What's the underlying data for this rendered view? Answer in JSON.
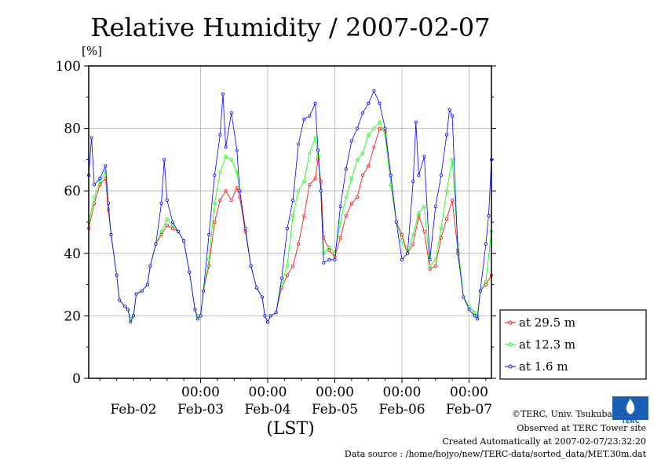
{
  "chart_data": {
    "type": "line",
    "title": "Relative Humidity / 2007-02-07",
    "ylabel": "[%]",
    "xlabel": "(LST)",
    "ylim": [
      0,
      100
    ],
    "xlim": [
      0,
      144
    ],
    "yticks": [
      0,
      20,
      40,
      60,
      80,
      100
    ],
    "xticks_time": [
      {
        "x": 40,
        "label": "00:00"
      },
      {
        "x": 64,
        "label": "00:00"
      },
      {
        "x": 88,
        "label": "00:00"
      },
      {
        "x": 112,
        "label": "00:00"
      },
      {
        "x": 136,
        "label": "00:00"
      }
    ],
    "xticks_date": [
      {
        "x": 16,
        "label": "Feb-02"
      },
      {
        "x": 40,
        "label": "Feb-03"
      },
      {
        "x": 64,
        "label": "Feb-04"
      },
      {
        "x": 88,
        "label": "Feb-05"
      },
      {
        "x": 112,
        "label": "Feb-06"
      },
      {
        "x": 136,
        "label": "Feb-07"
      }
    ],
    "grid": true,
    "legend_position": "right-bottom",
    "series": [
      {
        "name": "at 29.5 m",
        "color": "#ff0000",
        "points": [
          [
            0,
            48
          ],
          [
            2,
            56
          ],
          [
            4,
            62
          ],
          [
            6,
            64
          ],
          [
            7,
            54
          ],
          [
            8,
            46
          ],
          [
            10,
            33
          ],
          [
            11,
            25
          ],
          [
            13,
            23
          ],
          [
            14,
            22
          ],
          [
            15,
            19
          ],
          [
            16,
            20
          ],
          [
            17,
            27
          ],
          [
            19,
            28
          ],
          [
            21,
            30
          ],
          [
            22,
            36
          ],
          [
            24,
            43
          ],
          [
            26,
            46
          ],
          [
            28,
            49
          ],
          [
            30,
            48
          ],
          [
            32,
            47
          ],
          [
            34,
            44
          ],
          [
            36,
            34
          ],
          [
            38,
            22
          ],
          [
            39,
            20
          ],
          [
            40,
            20
          ],
          [
            41,
            28
          ],
          [
            43,
            36
          ],
          [
            45,
            50
          ],
          [
            47,
            57
          ],
          [
            49,
            60
          ],
          [
            51,
            57
          ],
          [
            53,
            61
          ],
          [
            54,
            58
          ],
          [
            56,
            47
          ],
          [
            58,
            36
          ],
          [
            60,
            29
          ],
          [
            62,
            26
          ],
          [
            63,
            20
          ],
          [
            64,
            18
          ],
          [
            65,
            20
          ],
          [
            67,
            21
          ],
          [
            69,
            29
          ],
          [
            71,
            33
          ],
          [
            73,
            36
          ],
          [
            75,
            43
          ],
          [
            77,
            52
          ],
          [
            79,
            62
          ],
          [
            81,
            64
          ],
          [
            82,
            70
          ],
          [
            83,
            63
          ],
          [
            84,
            45
          ],
          [
            86,
            41
          ],
          [
            88,
            39
          ],
          [
            90,
            45
          ],
          [
            92,
            52
          ],
          [
            94,
            56
          ],
          [
            96,
            58
          ],
          [
            98,
            65
          ],
          [
            100,
            68
          ],
          [
            102,
            74
          ],
          [
            104,
            80
          ],
          [
            106,
            79
          ],
          [
            108,
            65
          ],
          [
            110,
            50
          ],
          [
            112,
            46
          ],
          [
            114,
            40
          ],
          [
            116,
            43
          ],
          [
            118,
            52
          ],
          [
            120,
            47
          ],
          [
            122,
            35
          ],
          [
            124,
            36
          ],
          [
            126,
            45
          ],
          [
            128,
            51
          ],
          [
            130,
            57
          ],
          [
            132,
            41
          ],
          [
            134,
            26
          ],
          [
            136,
            23
          ],
          [
            138,
            21
          ],
          [
            139,
            20
          ],
          [
            140,
            28
          ],
          [
            142,
            30
          ],
          [
            144,
            33
          ]
        ]
      },
      {
        "name": "at 12.3 m",
        "color": "#00ff00",
        "points": [
          [
            0,
            50
          ],
          [
            2,
            58
          ],
          [
            4,
            63
          ],
          [
            6,
            66
          ],
          [
            7,
            56
          ],
          [
            8,
            46
          ],
          [
            10,
            33
          ],
          [
            11,
            25
          ],
          [
            13,
            23
          ],
          [
            14,
            22
          ],
          [
            15,
            19
          ],
          [
            16,
            20
          ],
          [
            17,
            27
          ],
          [
            19,
            28
          ],
          [
            21,
            30
          ],
          [
            22,
            36
          ],
          [
            24,
            43
          ],
          [
            26,
            47
          ],
          [
            28,
            51
          ],
          [
            30,
            49
          ],
          [
            32,
            47
          ],
          [
            34,
            44
          ],
          [
            36,
            34
          ],
          [
            38,
            22
          ],
          [
            39,
            20
          ],
          [
            40,
            20
          ],
          [
            41,
            28
          ],
          [
            43,
            38
          ],
          [
            45,
            56
          ],
          [
            47,
            66
          ],
          [
            49,
            71
          ],
          [
            51,
            70
          ],
          [
            53,
            66
          ],
          [
            54,
            60
          ],
          [
            56,
            48
          ],
          [
            58,
            36
          ],
          [
            60,
            29
          ],
          [
            62,
            26
          ],
          [
            63,
            20
          ],
          [
            64,
            18
          ],
          [
            65,
            20
          ],
          [
            67,
            21
          ],
          [
            69,
            30
          ],
          [
            71,
            36
          ],
          [
            73,
            52
          ],
          [
            75,
            60
          ],
          [
            77,
            63
          ],
          [
            79,
            72
          ],
          [
            81,
            77
          ],
          [
            82,
            71
          ],
          [
            83,
            60
          ],
          [
            84,
            40
          ],
          [
            86,
            42
          ],
          [
            88,
            40
          ],
          [
            90,
            50
          ],
          [
            92,
            58
          ],
          [
            94,
            64
          ],
          [
            96,
            70
          ],
          [
            98,
            72
          ],
          [
            100,
            78
          ],
          [
            102,
            80
          ],
          [
            104,
            82
          ],
          [
            106,
            78
          ],
          [
            108,
            62
          ],
          [
            110,
            50
          ],
          [
            112,
            44
          ],
          [
            114,
            40
          ],
          [
            116,
            46
          ],
          [
            118,
            53
          ],
          [
            120,
            55
          ],
          [
            122,
            36
          ],
          [
            124,
            38
          ],
          [
            126,
            48
          ],
          [
            128,
            60
          ],
          [
            130,
            70
          ],
          [
            132,
            43
          ],
          [
            134,
            26
          ],
          [
            136,
            23
          ],
          [
            138,
            21
          ],
          [
            139,
            20
          ],
          [
            140,
            28
          ],
          [
            142,
            31
          ],
          [
            144,
            47
          ]
        ]
      },
      {
        "name": "at 1.6 m",
        "color": "#0000ff",
        "points": [
          [
            0,
            65
          ],
          [
            1,
            77
          ],
          [
            2,
            62
          ],
          [
            4,
            64
          ],
          [
            6,
            68
          ],
          [
            7,
            56
          ],
          [
            8,
            46
          ],
          [
            10,
            33
          ],
          [
            11,
            25
          ],
          [
            13,
            23
          ],
          [
            14,
            22
          ],
          [
            15,
            18
          ],
          [
            16,
            20
          ],
          [
            17,
            27
          ],
          [
            19,
            28
          ],
          [
            21,
            30
          ],
          [
            22,
            36
          ],
          [
            24,
            43
          ],
          [
            26,
            56
          ],
          [
            27,
            70
          ],
          [
            28,
            57
          ],
          [
            30,
            50
          ],
          [
            32,
            47
          ],
          [
            34,
            44
          ],
          [
            36,
            34
          ],
          [
            38,
            22
          ],
          [
            39,
            19
          ],
          [
            40,
            20
          ],
          [
            41,
            28
          ],
          [
            43,
            46
          ],
          [
            45,
            65
          ],
          [
            47,
            78
          ],
          [
            48,
            91
          ],
          [
            49,
            74
          ],
          [
            51,
            85
          ],
          [
            53,
            73
          ],
          [
            54,
            60
          ],
          [
            56,
            48
          ],
          [
            58,
            36
          ],
          [
            60,
            29
          ],
          [
            62,
            26
          ],
          [
            63,
            20
          ],
          [
            64,
            18
          ],
          [
            65,
            20
          ],
          [
            67,
            21
          ],
          [
            69,
            32
          ],
          [
            71,
            48
          ],
          [
            73,
            57
          ],
          [
            75,
            75
          ],
          [
            77,
            83
          ],
          [
            79,
            84
          ],
          [
            81,
            88
          ],
          [
            82,
            73
          ],
          [
            83,
            60
          ],
          [
            84,
            37
          ],
          [
            86,
            38
          ],
          [
            88,
            38
          ],
          [
            90,
            55
          ],
          [
            92,
            67
          ],
          [
            94,
            76
          ],
          [
            96,
            80
          ],
          [
            98,
            85
          ],
          [
            100,
            88
          ],
          [
            102,
            92
          ],
          [
            104,
            88
          ],
          [
            106,
            80
          ],
          [
            108,
            65
          ],
          [
            110,
            50
          ],
          [
            112,
            38
          ],
          [
            114,
            40
          ],
          [
            116,
            63
          ],
          [
            117,
            82
          ],
          [
            118,
            65
          ],
          [
            120,
            71
          ],
          [
            122,
            38
          ],
          [
            124,
            55
          ],
          [
            126,
            65
          ],
          [
            128,
            78
          ],
          [
            129,
            86
          ],
          [
            130,
            84
          ],
          [
            132,
            40
          ],
          [
            134,
            26
          ],
          [
            136,
            22
          ],
          [
            138,
            20
          ],
          [
            139,
            19
          ],
          [
            140,
            28
          ],
          [
            142,
            43
          ],
          [
            143,
            52
          ],
          [
            144,
            70
          ]
        ]
      }
    ]
  },
  "legend": {
    "items": [
      {
        "label": "at 29.5 m",
        "color": "#ff0000"
      },
      {
        "label": "at 12.3 m",
        "color": "#00ff00"
      },
      {
        "label": "at 1.6 m",
        "color": "#0000ff"
      }
    ]
  },
  "footer": {
    "credit": "©TERC, Univ. Tsukuba",
    "site": "Observed at TERC Tower site",
    "created": "Created Automatically at 2007-02-07/23:32:20",
    "source": "Data source : /home/hojyo/new/TERC-data/sorted_data/MET.30m.dat",
    "logo_text": "TERC"
  }
}
